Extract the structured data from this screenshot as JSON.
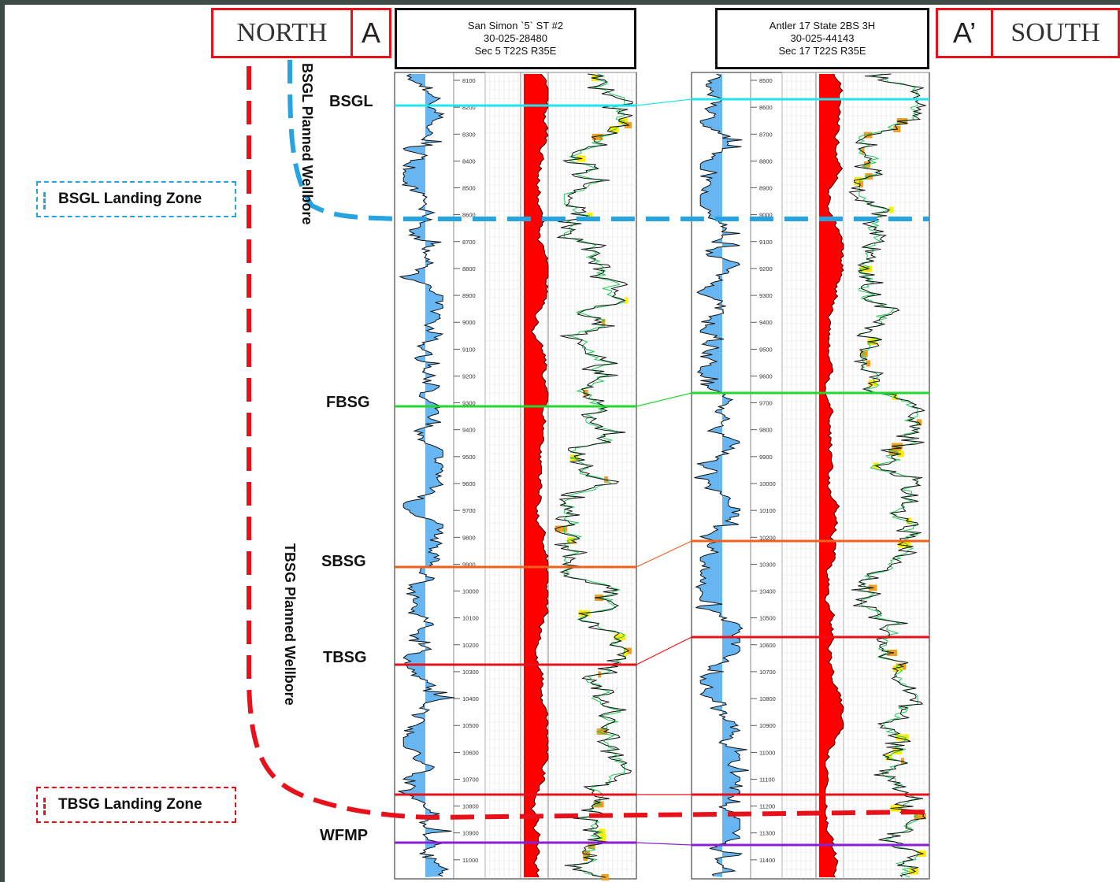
{
  "title_left": {
    "direction": "NORTH",
    "marker": "A"
  },
  "title_right": {
    "direction": "SOUTH",
    "marker": "A’"
  },
  "wells": [
    {
      "name": "San Simon `5` ST #2",
      "api": "30-025-28480",
      "location": "Sec 5 T22S R35E",
      "depth_ticks": [
        "8100",
        "8200",
        "8300",
        "8400",
        "8500",
        "8600",
        "8700",
        "8800",
        "8900",
        "9000",
        "9100",
        "9200",
        "9300",
        "9400",
        "9500",
        "9600",
        "9700",
        "9800",
        "9900",
        "10000",
        "10100",
        "10200",
        "10300",
        "10400",
        "10500",
        "10600",
        "10700",
        "10800",
        "10900",
        "11000"
      ]
    },
    {
      "name": "Antler 17 State 2BS 3H",
      "api": "30-025-44143",
      "location": "Sec 17 T22S R35E",
      "depth_ticks": [
        "8500",
        "8600",
        "8700",
        "8800",
        "8900",
        "9000",
        "9100",
        "9200",
        "9300",
        "9400",
        "9500",
        "9600",
        "9700",
        "9800",
        "9900",
        "10000",
        "10100",
        "10200",
        "10300",
        "10400",
        "10500",
        "10600",
        "10700",
        "10800",
        "10900",
        "11000",
        "11100",
        "11200",
        "11300",
        "11400"
      ]
    }
  ],
  "formations": [
    {
      "name": "BSGL",
      "color": "#22e3ee"
    },
    {
      "name": "FBSG",
      "color": "#22d82e"
    },
    {
      "name": "SBSG",
      "color": "#f2601e"
    },
    {
      "name": "TBSG",
      "color": "#e8111a"
    },
    {
      "name": "WFMP",
      "color": "#8b1fd6"
    }
  ],
  "landing_zones": [
    {
      "label": "BSGL Landing Zone",
      "color": "#27a4e0"
    },
    {
      "label": "TBSG Landing Zone",
      "color": "#e8111a"
    }
  ],
  "wellbores": [
    {
      "label": "BSGL Planned Wellbore",
      "color": "#27a4e0"
    },
    {
      "label": "TBSG Planned Wellbore",
      "color": "#e8111a"
    }
  ],
  "colors": {
    "gamma_fill": "#56aef0",
    "resistivity_fill": "#ff0000",
    "porosity_orange": "#f0a020",
    "crossover_yellow": "#ffee00",
    "crossover_green": "#22c85a"
  }
}
